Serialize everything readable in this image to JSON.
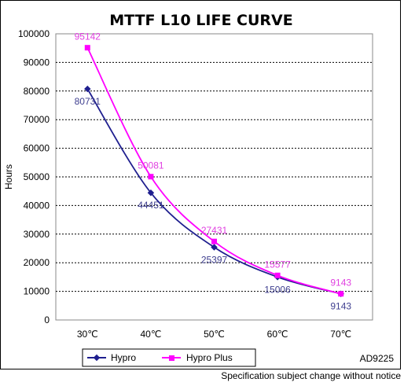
{
  "chart_data": {
    "type": "line",
    "title": "MTTF L10 LIFE CURVE",
    "ylabel": "Hours",
    "xlabel": "",
    "categories": [
      "30℃",
      "40℃",
      "50℃",
      "60℃",
      "70℃"
    ],
    "ylim": [
      0,
      100000
    ],
    "yticks": [
      "0",
      "10000",
      "20000",
      "30000",
      "40000",
      "50000",
      "60000",
      "70000",
      "80000",
      "90000",
      "100000"
    ],
    "grid": "horizontal dashed",
    "legend": "bottom",
    "series": [
      {
        "name": "Hypro",
        "color": "#1f1f8f",
        "marker": "diamond",
        "values": [
          80731,
          44451,
          25397,
          15006,
          9143
        ],
        "labels": [
          "80731",
          "44451",
          "25397",
          "15006",
          "9143"
        ]
      },
      {
        "name": "Hypro Plus",
        "color": "#ff00ff",
        "marker": "square",
        "values": [
          95142,
          50081,
          27431,
          15577,
          9143
        ],
        "labels": [
          "95142",
          "50081",
          "27431",
          "15577",
          "9143"
        ]
      }
    ]
  },
  "code": "AD9225",
  "footer": "Specification subject change without notice"
}
